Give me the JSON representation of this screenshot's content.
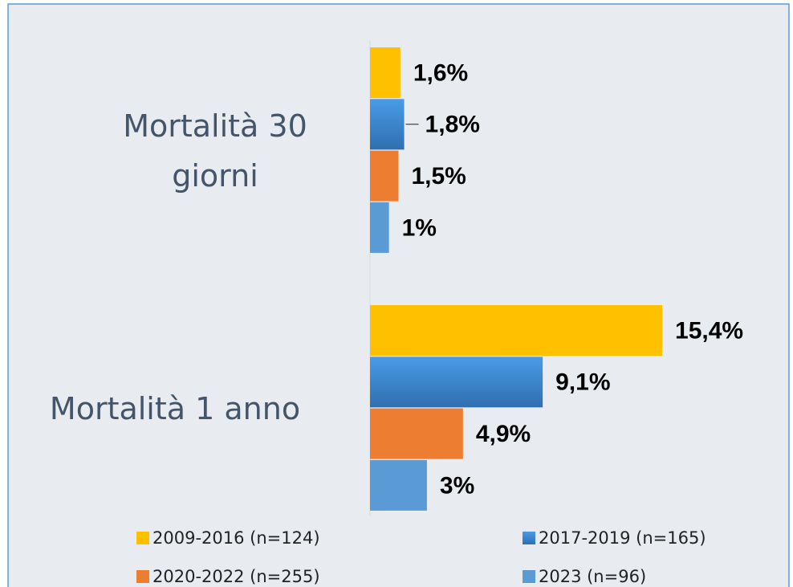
{
  "chart_data": {
    "type": "bar",
    "orientation": "horizontal",
    "categories": [
      "Mortalità 30 giorni",
      "Mortalità 1 anno"
    ],
    "xlim": [
      0,
      20
    ],
    "series": [
      {
        "name": "2009-2016 (n=124)",
        "color": "#ffc000",
        "values": [
          1.6,
          15.4
        ],
        "value_labels": [
          "1,6%",
          "15,4%"
        ]
      },
      {
        "name": "2017-2019 (n=165)",
        "color": "#3d8ad6",
        "values": [
          1.8,
          9.1
        ],
        "value_labels": [
          "1,8%",
          "9,1%"
        ]
      },
      {
        "name": "2020-2022 (n=255)",
        "color": "#ed7d31",
        "values": [
          1.5,
          4.9
        ],
        "value_labels": [
          "1,5%",
          "4,9%"
        ]
      },
      {
        "name": "2023 (n=96)",
        "color": "#5b9bd5",
        "values": [
          1,
          3
        ],
        "value_labels": [
          "1%",
          "3%"
        ]
      }
    ]
  }
}
